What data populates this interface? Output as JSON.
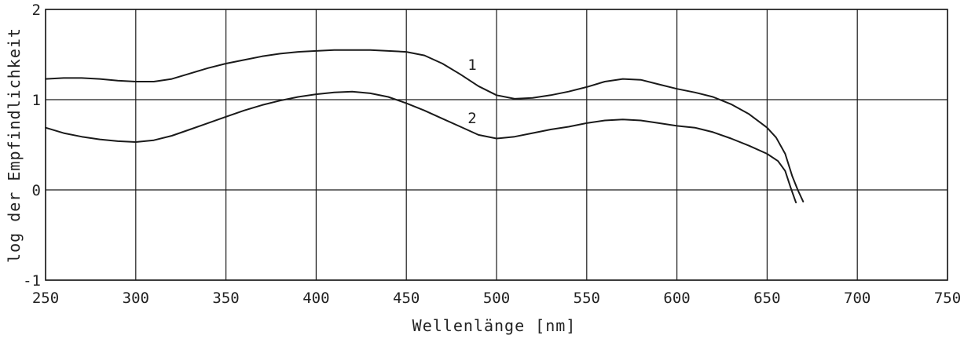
{
  "chart_data": {
    "type": "line",
    "title": "",
    "xlabel": "Wellenlänge [nm]",
    "ylabel": "log der Empfindlichkeit",
    "xlim": [
      250,
      750
    ],
    "ylim": [
      -1,
      2
    ],
    "xticks": [
      250,
      300,
      350,
      400,
      450,
      500,
      550,
      600,
      650,
      700,
      750
    ],
    "yticks": [
      2,
      1,
      0,
      -1
    ],
    "xtick_labels": [
      "250",
      "300",
      "350",
      "400",
      "450",
      "500",
      "550",
      "600",
      "650",
      "700",
      "750"
    ],
    "ytick_labels": [
      "2",
      "1",
      "0",
      "-1"
    ],
    "grid": true,
    "legend": "none",
    "series": [
      {
        "name": "1",
        "points": [
          [
            250,
            1.23
          ],
          [
            260,
            1.24
          ],
          [
            270,
            1.24
          ],
          [
            280,
            1.23
          ],
          [
            290,
            1.21
          ],
          [
            300,
            1.2
          ],
          [
            310,
            1.2
          ],
          [
            320,
            1.23
          ],
          [
            330,
            1.29
          ],
          [
            340,
            1.35
          ],
          [
            350,
            1.4
          ],
          [
            360,
            1.44
          ],
          [
            370,
            1.48
          ],
          [
            380,
            1.51
          ],
          [
            390,
            1.53
          ],
          [
            400,
            1.54
          ],
          [
            410,
            1.55
          ],
          [
            420,
            1.55
          ],
          [
            430,
            1.55
          ],
          [
            440,
            1.54
          ],
          [
            450,
            1.53
          ],
          [
            460,
            1.49
          ],
          [
            470,
            1.4
          ],
          [
            480,
            1.28
          ],
          [
            490,
            1.15
          ],
          [
            500,
            1.05
          ],
          [
            510,
            1.01
          ],
          [
            520,
            1.02
          ],
          [
            530,
            1.05
          ],
          [
            540,
            1.09
          ],
          [
            550,
            1.14
          ],
          [
            560,
            1.2
          ],
          [
            570,
            1.23
          ],
          [
            580,
            1.22
          ],
          [
            590,
            1.17
          ],
          [
            600,
            1.12
          ],
          [
            610,
            1.08
          ],
          [
            620,
            1.03
          ],
          [
            630,
            0.95
          ],
          [
            640,
            0.84
          ],
          [
            650,
            0.69
          ],
          [
            655,
            0.58
          ],
          [
            660,
            0.4
          ],
          [
            664,
            0.15
          ],
          [
            667,
            0.0
          ],
          [
            670,
            -0.13
          ]
        ]
      },
      {
        "name": "2",
        "points": [
          [
            250,
            0.69
          ],
          [
            260,
            0.63
          ],
          [
            270,
            0.59
          ],
          [
            280,
            0.56
          ],
          [
            290,
            0.54
          ],
          [
            300,
            0.53
          ],
          [
            310,
            0.55
          ],
          [
            320,
            0.6
          ],
          [
            330,
            0.67
          ],
          [
            340,
            0.74
          ],
          [
            350,
            0.81
          ],
          [
            360,
            0.88
          ],
          [
            370,
            0.94
          ],
          [
            380,
            0.99
          ],
          [
            390,
            1.03
          ],
          [
            400,
            1.06
          ],
          [
            410,
            1.08
          ],
          [
            420,
            1.09
          ],
          [
            430,
            1.07
          ],
          [
            440,
            1.03
          ],
          [
            450,
            0.96
          ],
          [
            460,
            0.88
          ],
          [
            470,
            0.79
          ],
          [
            480,
            0.7
          ],
          [
            490,
            0.61
          ],
          [
            500,
            0.57
          ],
          [
            510,
            0.59
          ],
          [
            520,
            0.63
          ],
          [
            530,
            0.67
          ],
          [
            540,
            0.7
          ],
          [
            550,
            0.74
          ],
          [
            560,
            0.77
          ],
          [
            570,
            0.78
          ],
          [
            580,
            0.77
          ],
          [
            590,
            0.74
          ],
          [
            600,
            0.71
          ],
          [
            610,
            0.69
          ],
          [
            620,
            0.64
          ],
          [
            630,
            0.57
          ],
          [
            640,
            0.49
          ],
          [
            650,
            0.4
          ],
          [
            656,
            0.32
          ],
          [
            660,
            0.21
          ],
          [
            663,
            0.03
          ],
          [
            666,
            -0.14
          ]
        ]
      }
    ],
    "annotations": [
      {
        "text": "1",
        "x": 484,
        "y": 1.33
      },
      {
        "text": "2",
        "x": 484,
        "y": 0.74
      }
    ]
  }
}
